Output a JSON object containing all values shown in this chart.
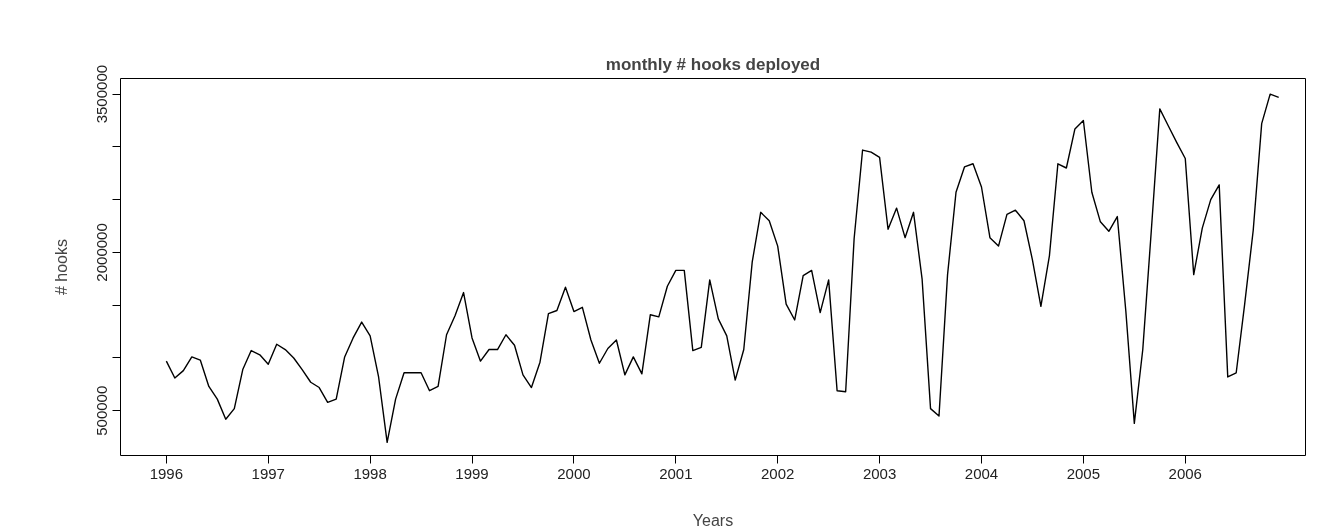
{
  "chart_data": {
    "type": "line",
    "title": "monthly # hooks deployed",
    "xlabel": "Years",
    "ylabel": "# hooks",
    "x": [
      1996,
      1996.083,
      1996.167,
      1996.25,
      1996.333,
      1996.417,
      1996.5,
      1996.583,
      1996.667,
      1996.75,
      1996.833,
      1996.917,
      1997,
      1997.083,
      1997.167,
      1997.25,
      1997.333,
      1997.417,
      1997.5,
      1997.583,
      1997.667,
      1997.75,
      1997.833,
      1997.917,
      1998,
      1998.083,
      1998.167,
      1998.25,
      1998.333,
      1998.417,
      1998.5,
      1998.583,
      1998.667,
      1998.75,
      1998.833,
      1998.917,
      1999,
      1999.083,
      1999.167,
      1999.25,
      1999.333,
      1999.417,
      1999.5,
      1999.583,
      1999.667,
      1999.75,
      1999.833,
      1999.917,
      2000,
      2000.083,
      2000.167,
      2000.25,
      2000.333,
      2000.417,
      2000.5,
      2000.583,
      2000.667,
      2000.75,
      2000.833,
      2000.917,
      2001,
      2001.083,
      2001.167,
      2001.25,
      2001.333,
      2001.417,
      2001.5,
      2001.583,
      2001.667,
      2001.75,
      2001.833,
      2001.917,
      2002,
      2002.083,
      2002.167,
      2002.25,
      2002.333,
      2002.417,
      2002.5,
      2002.583,
      2002.667,
      2002.75,
      2002.833,
      2002.917,
      2003,
      2003.083,
      2003.167,
      2003.25,
      2003.333,
      2003.417,
      2003.5,
      2003.583,
      2003.667,
      2003.75,
      2003.833,
      2003.917,
      2004,
      2004.083,
      2004.167,
      2004.25,
      2004.333,
      2004.417,
      2004.5,
      2004.583,
      2004.667,
      2004.75,
      2004.833,
      2004.917,
      2005,
      2005.083,
      2005.167,
      2005.25,
      2005.333,
      2005.417,
      2005.5,
      2005.583,
      2005.667,
      2005.75,
      2005.833,
      2005.917,
      2006,
      2006.083,
      2006.167,
      2006.25,
      2006.333,
      2006.417,
      2006.5,
      2006.583,
      2006.667,
      2006.75,
      2006.833,
      2006.917
    ],
    "series": [
      {
        "color": "#000000",
        "values": [
          970000,
          810000,
          880000,
          1010000,
          980000,
          730000,
          610000,
          420000,
          520000,
          890000,
          1070000,
          1030000,
          940000,
          1130000,
          1080000,
          1000000,
          890000,
          770000,
          720000,
          580000,
          610000,
          1010000,
          1190000,
          1340000,
          1210000,
          820000,
          200000,
          610000,
          860000,
          860000,
          860000,
          690000,
          730000,
          1220000,
          1400000,
          1620000,
          1190000,
          970000,
          1080000,
          1080000,
          1220000,
          1120000,
          840000,
          720000,
          960000,
          1420000,
          1450000,
          1670000,
          1440000,
          1480000,
          1170000,
          950000,
          1090000,
          1170000,
          840000,
          1010000,
          850000,
          1410000,
          1390000,
          1680000,
          1830000,
          1830000,
          1070000,
          1100000,
          1740000,
          1370000,
          1210000,
          790000,
          1080000,
          1910000,
          2380000,
          2300000,
          2060000,
          1510000,
          1360000,
          1780000,
          1830000,
          1430000,
          1740000,
          690000,
          680000,
          2130000,
          2970000,
          2950000,
          2900000,
          2220000,
          2420000,
          2140000,
          2380000,
          1750000,
          520000,
          450000,
          1790000,
          2570000,
          2810000,
          2840000,
          2620000,
          2140000,
          2060000,
          2360000,
          2400000,
          2300000,
          1930000,
          1490000,
          1970000,
          2840000,
          2800000,
          3170000,
          3250000,
          2570000,
          2290000,
          2200000,
          2340000,
          1440000,
          380000,
          1080000,
          2210000,
          3360000,
          3200000,
          3040000,
          2890000,
          1790000,
          2230000,
          2500000,
          2640000,
          820000,
          860000,
          1510000,
          2210000,
          3220000,
          3500000,
          3470000
        ]
      }
    ],
    "xlim": [
      1995.55,
      2007.18
    ],
    "xticks": [
      1996,
      1997,
      1998,
      1999,
      2000,
      2001,
      2002,
      2003,
      2004,
      2005,
      2006
    ],
    "ylim": [
      76000,
      3648000
    ],
    "yticks": [
      500000,
      {
        "value": 1000000,
        "label": null
      },
      {
        "value": 1500000,
        "label": null
      },
      2000000,
      {
        "value": 2500000,
        "label": null
      },
      {
        "value": 3000000,
        "label": null
      },
      3500000
    ],
    "grid": false,
    "line_style": "solid",
    "marker": "none"
  }
}
